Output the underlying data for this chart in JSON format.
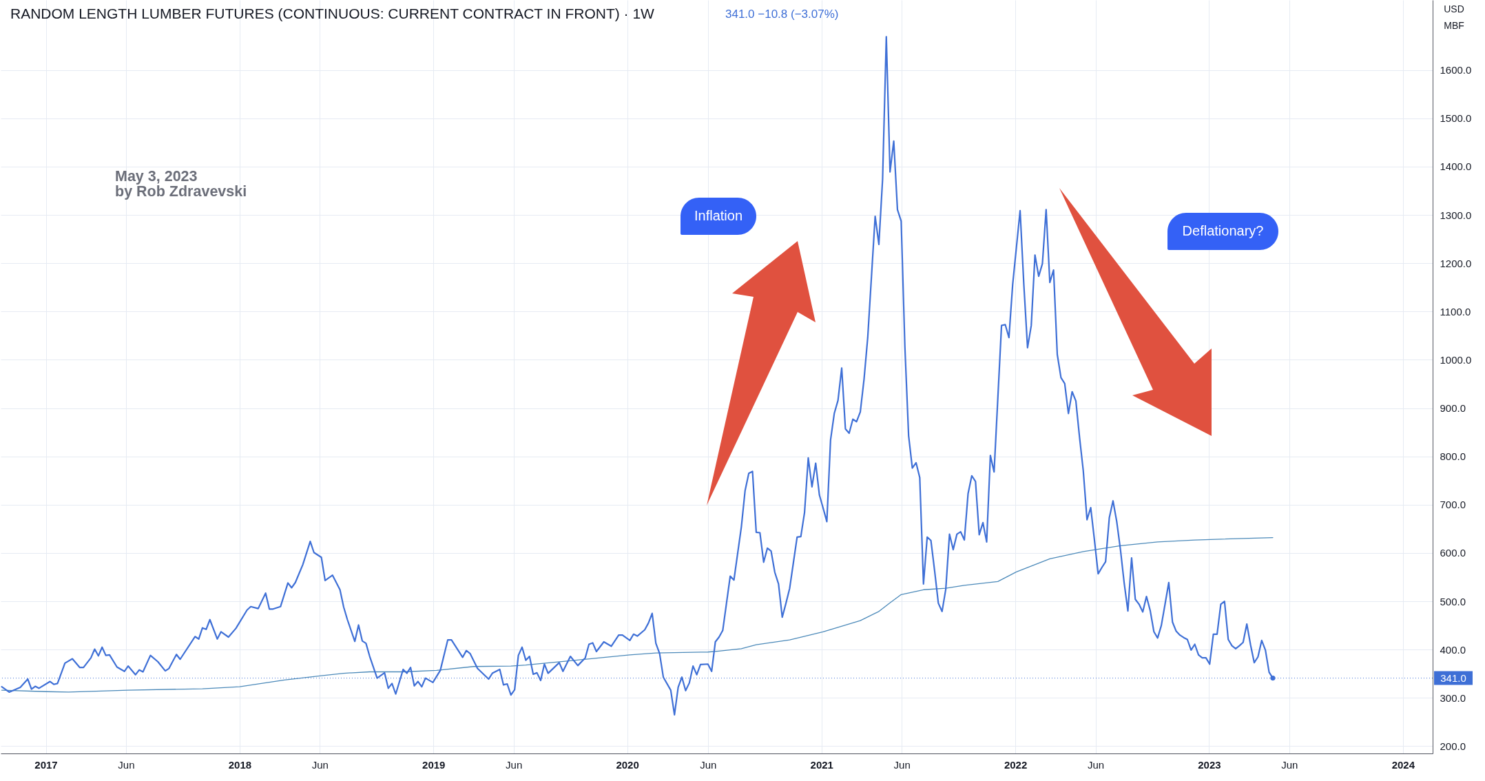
{
  "chart_data": {
    "type": "line",
    "title": "RANDOM LENGTH LUMBER FUTURES (CONTINUOUS: CURRENT CONTRACT IN FRONT) · 1W",
    "subtitle": "341.0 −10.8 (−3.07%)",
    "annotations": [
      "May 3, 2023",
      "by Rob Zdravevski",
      "Inflation",
      "Deflationary?",
      "USD",
      "MBF"
    ],
    "xlim": [
      "2016-10-08",
      "2024-02-26"
    ],
    "xticks": [
      {
        "value": "2017-01-01",
        "label": "2017"
      },
      {
        "value": "2017-06-01",
        "label": "Jun"
      },
      {
        "value": "2018-01-01",
        "label": "2018"
      },
      {
        "value": "2018-06-01",
        "label": "Jun"
      },
      {
        "value": "2019-01-01",
        "label": "2019"
      },
      {
        "value": "2019-06-01",
        "label": "Jun"
      },
      {
        "value": "2020-01-01",
        "label": "2020"
      },
      {
        "value": "2020-06-01",
        "label": "Jun"
      },
      {
        "value": "2021-01-01",
        "label": "2021"
      },
      {
        "value": "2021-06-01",
        "label": "Jun"
      },
      {
        "value": "2022-01-01",
        "label": "2022"
      },
      {
        "value": "2022-06-01",
        "label": "Jun"
      },
      {
        "value": "2023-01-01",
        "label": "2023"
      },
      {
        "value": "2023-06-01",
        "label": "Jun"
      },
      {
        "value": "2024-01-01",
        "label": "2024"
      }
    ],
    "ylim": [
      185,
      1745
    ],
    "yticks": [
      {
        "value": 200,
        "label": "200.0"
      },
      {
        "value": 300,
        "label": "300.0"
      },
      {
        "value": 400,
        "label": "400.0"
      },
      {
        "value": 500,
        "label": "500.0"
      },
      {
        "value": 600,
        "label": "600.0"
      },
      {
        "value": 700,
        "label": "700.0"
      },
      {
        "value": 800,
        "label": "800.0"
      },
      {
        "value": 900,
        "label": "900.0"
      },
      {
        "value": 1000,
        "label": "1000.0"
      },
      {
        "value": 1100,
        "label": "1100.0"
      },
      {
        "value": 1200,
        "label": "1200.0"
      },
      {
        "value": 1300,
        "label": "1300.0"
      },
      {
        "value": 1400,
        "label": "1400.0"
      },
      {
        "value": 1500,
        "label": "1500.0"
      },
      {
        "value": 1600,
        "label": "1600.0"
      }
    ],
    "grid": true,
    "ref_lines": [
      {
        "axis": "y",
        "value": 341,
        "label": "341.0",
        "color": "#3e6fd6",
        "line_style": "dotted"
      }
    ],
    "series": [
      {
        "color": "#4b89b9",
        "x": [
          "2016-10-10",
          "2017-01-02",
          "2017-02-13",
          "2017-06-05",
          "2017-10-23",
          "2018-01-01",
          "2018-03-26",
          "2018-06-04",
          "2018-07-16",
          "2018-09-03",
          "2018-11-05",
          "2019-01-07",
          "2019-03-18",
          "2019-05-27",
          "2019-06-24",
          "2019-09-16",
          "2020-01-06",
          "2020-02-24",
          "2020-06-01",
          "2020-06-22",
          "2020-08-03",
          "2020-08-31",
          "2020-11-02",
          "2021-01-04",
          "2021-03-15",
          "2021-04-19",
          "2021-05-10",
          "2021-05-31",
          "2021-07-12",
          "2021-08-23",
          "2021-09-27",
          "2021-11-29",
          "2022-01-03",
          "2022-03-07",
          "2022-05-09",
          "2022-07-18",
          "2022-09-26",
          "2022-12-05",
          "2023-05-01"
        ],
        "values": [
          316,
          313,
          312,
          316,
          319,
          323,
          337,
          346,
          351,
          354,
          354,
          357,
          365,
          366,
          368,
          377,
          389,
          393,
          395,
          397,
          402,
          410,
          420,
          437,
          460,
          479,
          497,
          514,
          524,
          527,
          533,
          541,
          561,
          588,
          603,
          615,
          623,
          627,
          632
        ]
      },
      {
        "color": "#3e6fd6",
        "x": [
          "2016-10-10",
          "2016-10-24",
          "2016-11-14",
          "2016-11-28",
          "2016-12-05",
          "2016-12-12",
          "2016-12-19",
          "2017-01-09",
          "2017-01-16",
          "2017-01-23",
          "2017-02-06",
          "2017-02-20",
          "2017-03-06",
          "2017-03-13",
          "2017-03-27",
          "2017-04-03",
          "2017-04-10",
          "2017-04-17",
          "2017-04-24",
          "2017-05-01",
          "2017-05-15",
          "2017-05-29",
          "2017-06-05",
          "2017-06-19",
          "2017-06-26",
          "2017-07-03",
          "2017-07-17",
          "2017-07-31",
          "2017-08-14",
          "2017-08-21",
          "2017-09-04",
          "2017-09-11",
          "2017-10-09",
          "2017-10-16",
          "2017-10-23",
          "2017-10-30",
          "2017-11-06",
          "2017-11-20",
          "2017-11-27",
          "2017-12-11",
          "2017-12-25",
          "2018-01-15",
          "2018-01-22",
          "2018-02-05",
          "2018-02-19",
          "2018-02-26",
          "2018-03-05",
          "2018-03-19",
          "2018-04-02",
          "2018-04-09",
          "2018-04-16",
          "2018-04-30",
          "2018-05-14",
          "2018-05-21",
          "2018-06-04",
          "2018-06-11",
          "2018-06-25",
          "2018-07-09",
          "2018-07-16",
          "2018-07-23",
          "2018-08-06",
          "2018-08-13",
          "2018-08-20",
          "2018-08-27",
          "2018-09-03",
          "2018-09-17",
          "2018-10-01",
          "2018-10-08",
          "2018-10-15",
          "2018-10-22",
          "2018-11-05",
          "2018-11-12",
          "2018-11-19",
          "2018-11-26",
          "2018-12-03",
          "2018-12-10",
          "2018-12-17",
          "2018-12-31",
          "2019-01-14",
          "2019-01-28",
          "2019-02-04",
          "2019-02-25",
          "2019-03-04",
          "2019-03-11",
          "2019-03-25",
          "2019-04-15",
          "2019-04-22",
          "2019-05-06",
          "2019-05-13",
          "2019-05-20",
          "2019-05-27",
          "2019-06-03",
          "2019-06-10",
          "2019-06-17",
          "2019-06-24",
          "2019-07-01",
          "2019-07-08",
          "2019-07-15",
          "2019-07-22",
          "2019-07-29",
          "2019-08-05",
          "2019-08-26",
          "2019-09-02",
          "2019-09-16",
          "2019-09-30",
          "2019-10-14",
          "2019-10-21",
          "2019-10-28",
          "2019-11-04",
          "2019-11-18",
          "2019-12-02",
          "2019-12-16",
          "2019-12-23",
          "2020-01-06",
          "2020-01-13",
          "2020-01-20",
          "2020-02-03",
          "2020-02-10",
          "2020-02-17",
          "2020-02-24",
          "2020-03-02",
          "2020-03-09",
          "2020-03-23",
          "2020-03-30",
          "2020-04-06",
          "2020-04-13",
          "2020-04-20",
          "2020-04-27",
          "2020-05-04",
          "2020-05-11",
          "2020-05-18",
          "2020-06-01",
          "2020-06-08",
          "2020-06-15",
          "2020-06-22",
          "2020-06-29",
          "2020-07-06",
          "2020-07-13",
          "2020-07-20",
          "2020-07-27",
          "2020-08-03",
          "2020-08-10",
          "2020-08-17",
          "2020-08-24",
          "2020-08-31",
          "2020-09-07",
          "2020-09-14",
          "2020-09-21",
          "2020-09-28",
          "2020-10-05",
          "2020-10-12",
          "2020-10-19",
          "2020-10-26",
          "2020-11-02",
          "2020-11-09",
          "2020-11-16",
          "2020-11-23",
          "2020-11-30",
          "2020-12-07",
          "2020-12-14",
          "2020-12-21",
          "2020-12-28",
          "2021-01-04",
          "2021-01-11",
          "2021-01-18",
          "2021-01-25",
          "2021-02-01",
          "2021-02-08",
          "2021-02-15",
          "2021-02-22",
          "2021-03-01",
          "2021-03-08",
          "2021-03-15",
          "2021-03-22",
          "2021-03-29",
          "2021-04-12",
          "2021-04-19",
          "2021-04-26",
          "2021-05-03",
          "2021-05-10",
          "2021-05-17",
          "2021-05-24",
          "2021-05-31",
          "2021-06-07",
          "2021-06-14",
          "2021-06-21",
          "2021-06-28",
          "2021-07-05",
          "2021-07-12",
          "2021-07-19",
          "2021-07-26",
          "2021-08-02",
          "2021-08-09",
          "2021-08-16",
          "2021-08-23",
          "2021-08-30",
          "2021-09-06",
          "2021-09-13",
          "2021-09-20",
          "2021-09-27",
          "2021-10-04",
          "2021-10-11",
          "2021-10-18",
          "2021-10-25",
          "2021-11-01",
          "2021-11-08",
          "2021-11-15",
          "2021-11-22",
          "2021-12-06",
          "2021-12-13",
          "2021-12-20",
          "2021-12-27",
          "2022-01-10",
          "2022-01-17",
          "2022-01-24",
          "2022-01-31",
          "2022-02-07",
          "2022-02-14",
          "2022-02-21",
          "2022-02-28",
          "2022-03-07",
          "2022-03-14",
          "2022-03-21",
          "2022-03-28",
          "2022-04-04",
          "2022-04-11",
          "2022-04-18",
          "2022-04-25",
          "2022-05-02",
          "2022-05-09",
          "2022-05-16",
          "2022-05-23",
          "2022-05-30",
          "2022-06-06",
          "2022-06-13",
          "2022-06-20",
          "2022-06-27",
          "2022-07-04",
          "2022-07-11",
          "2022-07-18",
          "2022-07-25",
          "2022-08-01",
          "2022-08-08",
          "2022-08-15",
          "2022-08-22",
          "2022-08-29",
          "2022-09-05",
          "2022-09-12",
          "2022-09-19",
          "2022-09-26",
          "2022-10-03",
          "2022-10-10",
          "2022-10-17",
          "2022-10-24",
          "2022-10-31",
          "2022-11-07",
          "2022-11-14",
          "2022-11-21",
          "2022-11-28",
          "2022-12-05",
          "2022-12-12",
          "2022-12-19",
          "2022-12-26",
          "2023-01-02",
          "2023-01-09",
          "2023-01-16",
          "2023-01-23",
          "2023-01-30",
          "2023-02-06",
          "2023-02-13",
          "2023-02-20",
          "2023-02-27",
          "2023-03-06",
          "2023-03-13",
          "2023-03-20",
          "2023-03-27",
          "2023-04-03",
          "2023-04-10",
          "2023-04-17",
          "2023-04-24",
          "2023-05-01"
        ],
        "values": [
          323,
          312,
          322,
          339,
          318,
          324,
          320,
          334,
          328,
          330,
          372,
          381,
          363,
          363,
          383,
          401,
          387,
          405,
          388,
          389,
          364,
          355,
          366,
          348,
          358,
          354,
          388,
          375,
          356,
          361,
          390,
          380,
          427,
          422,
          445,
          442,
          462,
          422,
          437,
          426,
          444,
          482,
          489,
          485,
          517,
          484,
          484,
          489,
          538,
          528,
          539,
          576,
          624,
          601,
          591,
          543,
          554,
          524,
          488,
          462,
          417,
          451,
          418,
          413,
          386,
          341,
          352,
          320,
          330,
          308,
          359,
          351,
          363,
          325,
          334,
          323,
          341,
          332,
          357,
          420,
          420,
          384,
          398,
          392,
          361,
          339,
          351,
          359,
          327,
          329,
          306,
          317,
          388,
          405,
          378,
          386,
          349,
          352,
          336,
          370,
          351,
          373,
          355,
          386,
          367,
          383,
          411,
          414,
          396,
          416,
          407,
          430,
          430,
          419,
          432,
          428,
          441,
          455,
          475,
          413,
          392,
          343,
          316,
          265,
          322,
          343,
          315,
          331,
          366,
          348,
          369,
          370,
          355,
          416,
          426,
          440,
          496,
          552,
          544,
          599,
          654,
          729,
          765,
          769,
          643,
          642,
          581,
          610,
          604,
          560,
          536,
          467,
          496,
          527,
          580,
          633,
          634,
          684,
          797,
          737,
          786,
          720,
          693,
          665,
          834,
          889,
          916,
          983,
          857,
          848,
          877,
          872,
          892,
          959,
          1046,
          1297,
          1239,
          1374,
          1669,
          1389,
          1453,
          1311,
          1287,
          1027,
          843,
          776,
          787,
          756,
          536,
          633,
          626,
          563,
          496,
          479,
          525,
          639,
          607,
          639,
          644,
          627,
          723,
          760,
          748,
          638,
          663,
          623,
          802,
          768,
          1071,
          1073,
          1046,
          1156,
          1309,
          1156,
          1025,
          1071,
          1217,
          1173,
          1199,
          1311,
          1160,
          1186,
          1011,
          963,
          951,
          889,
          934,
          915,
          839,
          770,
          669,
          694,
          627,
          557,
          570,
          582,
          673,
          708,
          665,
          607,
          538,
          480,
          590,
          504,
          494,
          478,
          510,
          481,
          437,
          424,
          450,
          494,
          539,
          457,
          438,
          430,
          425,
          421,
          399,
          411,
          389,
          383,
          383,
          370,
          432,
          432,
          494,
          500,
          421,
          408,
          402,
          408,
          415,
          453,
          410,
          373,
          385,
          419,
          399,
          353,
          341
        ]
      },
      {
        "type": "scatter",
        "color": "#3e6fd6",
        "marker": "circle",
        "x": [
          "2023-05-01"
        ],
        "values": [
          341
        ]
      }
    ]
  }
}
